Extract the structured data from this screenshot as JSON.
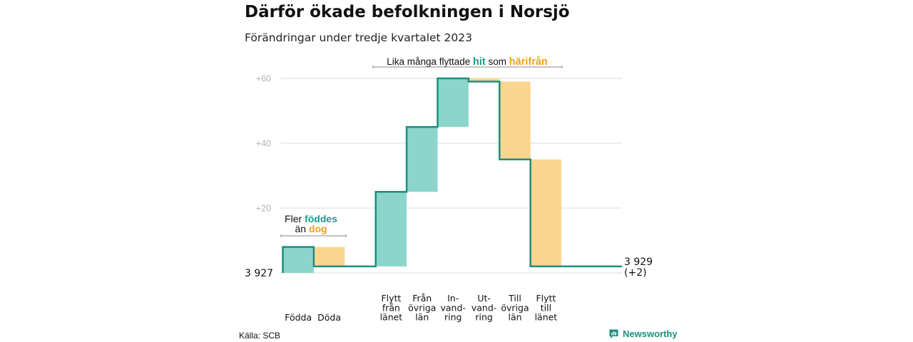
{
  "title": "Därför ökade befolkningen i Norsjö",
  "subtitle": "Förändringar under tredje kvartalet 2023",
  "source": "Källa: SCB",
  "brand": "Newsworthy",
  "colors": {
    "increase": "#8cd5cb",
    "decrease": "#fbd58f",
    "line": "#1a8f7e",
    "grid": "#d9d9d9",
    "tick": "#b3b3b3",
    "bracket": "#888888"
  },
  "chart_data": {
    "type": "waterfall",
    "start_label": "3  927",
    "end_label_1": "3 929",
    "end_label_2": "(+2)",
    "yticks": [
      "+20",
      "+40",
      "+60"
    ],
    "ytick_values": [
      20,
      40,
      60
    ],
    "ylim": [
      0,
      60
    ],
    "categories": [
      {
        "label": [
          "Födda"
        ],
        "value": 8,
        "kind": "increase"
      },
      {
        "label": [
          "Döda"
        ],
        "value": -6,
        "kind": "decrease"
      },
      {
        "label": [
          "Flytt",
          "från",
          "länet"
        ],
        "value": 23,
        "kind": "increase"
      },
      {
        "label": [
          "Från",
          "övriga",
          "län"
        ],
        "value": 20,
        "kind": "increase"
      },
      {
        "label": [
          "In-",
          "vand-",
          "ring"
        ],
        "value": 15,
        "kind": "increase"
      },
      {
        "label": [
          "Ut-",
          "vand-",
          "ring"
        ],
        "value": -1,
        "kind": "decrease"
      },
      {
        "label": [
          "Till",
          "övriga",
          "län"
        ],
        "value": -24,
        "kind": "decrease"
      },
      {
        "label": [
          "Flytt",
          "till",
          "länet"
        ],
        "value": -33,
        "kind": "decrease"
      }
    ],
    "annotation_births": {
      "line1_a": "Fler",
      "line1_b": "föddes",
      "line2_a": "än",
      "line2_b": "dog"
    },
    "annotation_moves": {
      "a": "Lika många flyttade",
      "b": "hit",
      "c": "som",
      "d": "härifrån"
    }
  }
}
